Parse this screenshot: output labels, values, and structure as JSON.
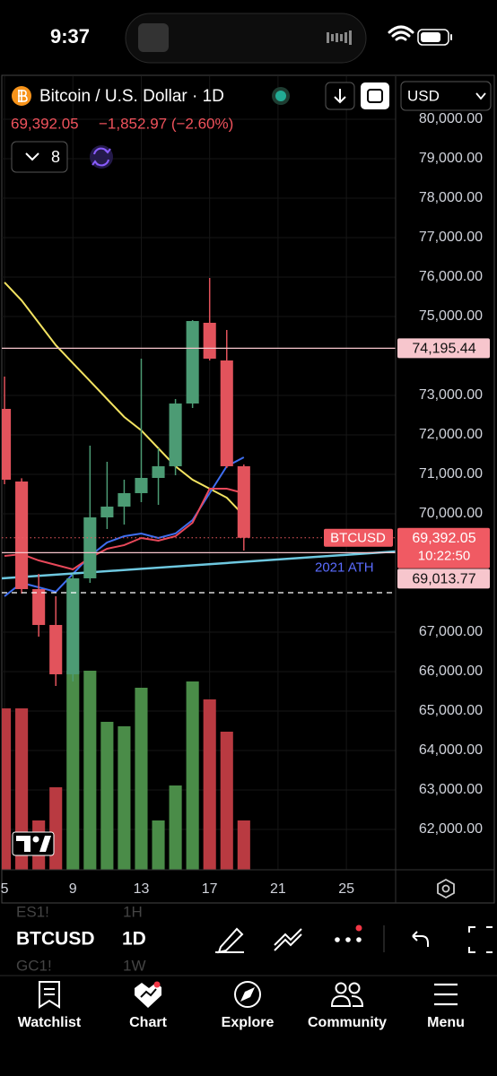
{
  "status_bar": {
    "time": "9:37"
  },
  "header": {
    "symbol_title": "Bitcoin / U.S. Dollar · 1D",
    "price": "69,392.05",
    "change": "−1,852.97 (−2.60%)",
    "indicator_count": "8",
    "currency": "USD"
  },
  "chart_data": {
    "type": "candlestick",
    "x": [
      5,
      6,
      7,
      8,
      9,
      10,
      11,
      12,
      13,
      14,
      15,
      16,
      17,
      18,
      19
    ],
    "open": [
      72659,
      70818,
      68091,
      67182,
      65932,
      68364,
      69909,
      70182,
      70523,
      70909,
      71205,
      72795,
      74841,
      73886,
      71205
    ],
    "high": [
      73477,
      70900,
      68477,
      67909,
      68477,
      71727,
      71318,
      70864,
      73932,
      71659,
      72909,
      74909,
      75977,
      74659,
      71250
    ],
    "low": [
      70750,
      67977,
      66886,
      65636,
      65750,
      68250,
      69614,
      69727,
      70295,
      70227,
      70977,
      72682,
      73886,
      71159,
      69068
    ],
    "close": [
      70864,
      68091,
      67182,
      65932,
      68364,
      69909,
      70182,
      70523,
      70909,
      71205,
      72795,
      74886,
      73932,
      71205,
      69392.05
    ],
    "volume": [
      180,
      180,
      55,
      92,
      222,
      222,
      165,
      160,
      203,
      55,
      94,
      210,
      190,
      154,
      55
    ],
    "up_color": "#4c9b74",
    "down_color": "#e2535c",
    "volume_up_color": "#4a8c48",
    "volume_down_color": "#b93a41",
    "series": [
      {
        "color": "#f3e361",
        "values": [
          75864,
          75409,
          74841,
          74273,
          73818,
          73364,
          72909,
          72455,
          72114,
          71659,
          71205,
          70864,
          70636,
          70409,
          69955
        ]
      },
      {
        "color": "#3f6ef0",
        "values": [
          67909,
          68250,
          68136,
          68023,
          68477,
          68932,
          69273,
          69432,
          69500,
          69386,
          69500,
          69841,
          70523,
          71205,
          71432
        ]
      },
      {
        "color": "#e8485a",
        "values": [
          68932,
          68977,
          68818,
          68705,
          68591,
          68886,
          69114,
          69205,
          69386,
          69318,
          69432,
          69773,
          70636,
          70636,
          70523
        ]
      }
    ],
    "trendline": {
      "color": "#6ec8e0",
      "x": [
        4.84,
        27.88
      ],
      "values": [
        68364,
        69045
      ]
    },
    "levels": [
      {
        "value": 74195.44,
        "label": "74,195.44",
        "color": "#f7c6cd",
        "style": "solid"
      },
      {
        "value": 69013.77,
        "label": "69,013.77",
        "text": "2021 ATH",
        "color": "#f7c6cd",
        "style": "solid"
      },
      {
        "value": 68000,
        "color": "#ffffff",
        "style": "dashed"
      }
    ],
    "current": {
      "label": "BTCUSD",
      "value_label": "69,392.05",
      "countdown": "10:22:50",
      "color": "#f05a63"
    },
    "xlim": [
      4.84,
      27.88
    ],
    "xticks": [
      5,
      9,
      13,
      17,
      21,
      25
    ],
    "ylim": [
      60977,
      81091
    ],
    "yticks": [
      {
        "value": 80000,
        "label": "80,000.00"
      },
      {
        "value": 79000,
        "label": "79,000.00"
      },
      {
        "value": 78000,
        "label": "78,000.00"
      },
      {
        "value": 77000,
        "label": "77,000.00"
      },
      {
        "value": 76000,
        "label": "76,000.00"
      },
      {
        "value": 75000,
        "label": "75,000.00"
      },
      {
        "value": 73000,
        "label": "73,000.00"
      },
      {
        "value": 72000,
        "label": "72,000.00"
      },
      {
        "value": 71000,
        "label": "71,000.00"
      },
      {
        "value": 70000,
        "label": "70,000.00"
      },
      {
        "value": 67000,
        "label": "67,000.00"
      },
      {
        "value": 66000,
        "label": "66,000.00"
      },
      {
        "value": 65000,
        "label": "65,000.00"
      },
      {
        "value": 64000,
        "label": "64,000.00"
      },
      {
        "value": 63000,
        "label": "63,000.00"
      },
      {
        "value": 62000,
        "label": "62,000.00"
      }
    ],
    "grid": true
  },
  "toolbar": {
    "symbols": [
      "ES1!",
      "BTCUSD",
      "GC1!"
    ],
    "intervals": [
      "1H",
      "1D",
      "1W"
    ]
  },
  "tab_bar": {
    "tabs": [
      "Watchlist",
      "Chart",
      "Explore",
      "Community",
      "Menu"
    ]
  }
}
